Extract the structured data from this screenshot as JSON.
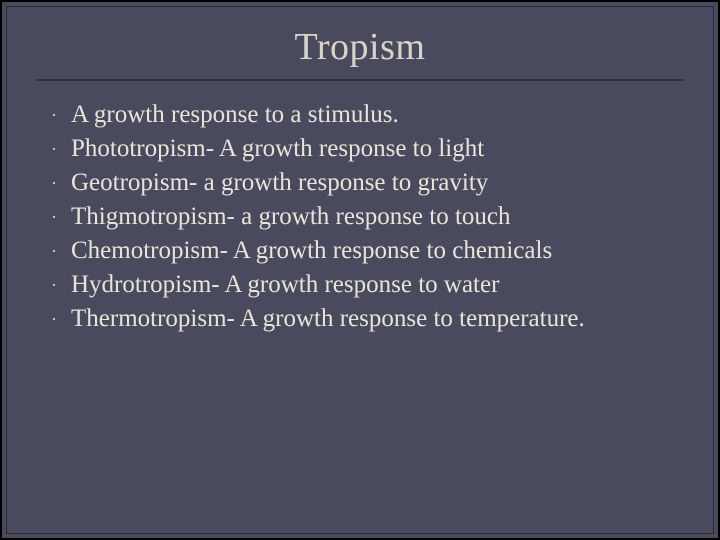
{
  "slide": {
    "title": "Tropism",
    "background_color": "#4a4a5e",
    "outer_border_color": "#000000",
    "inner_border_color": "#2a2a38",
    "underline_color": "#2f2f3e",
    "title_color": "#d8d4c8",
    "title_fontsize": 38,
    "text_color": "#e8e4d8",
    "bullet_color": "#d8d4c8",
    "bullet_glyph": "·",
    "body_fontsize": 25,
    "line_height": 32,
    "font_family": "Georgia, 'Times New Roman', serif",
    "bullets": [
      "A growth response to a stimulus.",
      "Phototropism- A growth response to light",
      "Geotropism- a growth response to gravity",
      "Thigmotropism- a growth response to touch",
      "Chemotropism- A growth response to chemicals",
      "Hydrotropism- A growth response to water",
      "Thermotropism- A growth response to temperature."
    ]
  }
}
